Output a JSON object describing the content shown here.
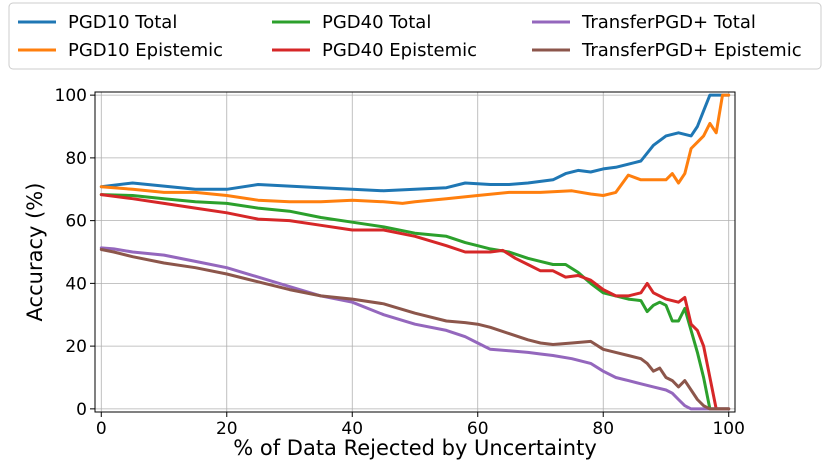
{
  "chart_data": {
    "type": "line",
    "xlabel": "% of Data Rejected by Uncertainty",
    "ylabel": "Accuracy (%)",
    "xlim": [
      -1,
      101
    ],
    "ylim": [
      -1,
      101
    ],
    "x_ticks": [
      0,
      20,
      40,
      60,
      80,
      100
    ],
    "y_ticks": [
      0,
      20,
      40,
      60,
      80,
      100
    ],
    "grid": true,
    "legend_position": "top, above plot, 3 columns",
    "series": [
      {
        "name": "PGD10 Total",
        "color": "#1f77b4",
        "points": [
          [
            0,
            70.8
          ],
          [
            5,
            72
          ],
          [
            10,
            71
          ],
          [
            15,
            70
          ],
          [
            20,
            70
          ],
          [
            25,
            71.5
          ],
          [
            30,
            71
          ],
          [
            35,
            70.5
          ],
          [
            40,
            70
          ],
          [
            45,
            69.5
          ],
          [
            50,
            70
          ],
          [
            55,
            70.5
          ],
          [
            58,
            72
          ],
          [
            62,
            71.5
          ],
          [
            65,
            71.5
          ],
          [
            68,
            72
          ],
          [
            72,
            73
          ],
          [
            74,
            75
          ],
          [
            76,
            76
          ],
          [
            78,
            75.5
          ],
          [
            80,
            76.5
          ],
          [
            82,
            77
          ],
          [
            84,
            78
          ],
          [
            86,
            79
          ],
          [
            88,
            84
          ],
          [
            90,
            87
          ],
          [
            92,
            88
          ],
          [
            94,
            87
          ],
          [
            95,
            90
          ],
          [
            96,
            95
          ],
          [
            97,
            100
          ],
          [
            100,
            100
          ]
        ]
      },
      {
        "name": "PGD10 Epistemic",
        "color": "#ff7f0e",
        "points": [
          [
            0,
            70.8
          ],
          [
            5,
            70
          ],
          [
            10,
            69
          ],
          [
            15,
            69
          ],
          [
            20,
            68
          ],
          [
            25,
            66.5
          ],
          [
            30,
            66
          ],
          [
            35,
            66
          ],
          [
            40,
            66.5
          ],
          [
            45,
            66
          ],
          [
            48,
            65.5
          ],
          [
            50,
            66
          ],
          [
            55,
            67
          ],
          [
            60,
            68
          ],
          [
            65,
            69
          ],
          [
            70,
            69
          ],
          [
            75,
            69.5
          ],
          [
            78,
            68.5
          ],
          [
            80,
            68
          ],
          [
            82,
            69
          ],
          [
            84,
            74.5
          ],
          [
            86,
            73
          ],
          [
            88,
            73
          ],
          [
            90,
            73
          ],
          [
            91,
            75
          ],
          [
            92,
            72
          ],
          [
            93,
            75
          ],
          [
            94,
            83
          ],
          [
            95,
            85
          ],
          [
            96,
            87
          ],
          [
            97,
            91
          ],
          [
            98,
            88
          ],
          [
            99,
            100
          ],
          [
            100,
            100
          ]
        ]
      },
      {
        "name": "PGD40 Total",
        "color": "#2ca02c",
        "points": [
          [
            0,
            68.3
          ],
          [
            5,
            68
          ],
          [
            10,
            67
          ],
          [
            15,
            66
          ],
          [
            20,
            65.5
          ],
          [
            25,
            64
          ],
          [
            30,
            63
          ],
          [
            35,
            61
          ],
          [
            40,
            59.5
          ],
          [
            45,
            58
          ],
          [
            50,
            56
          ],
          [
            55,
            55
          ],
          [
            58,
            53
          ],
          [
            60,
            52
          ],
          [
            62,
            51
          ],
          [
            65,
            50
          ],
          [
            68,
            48
          ],
          [
            70,
            47
          ],
          [
            72,
            46
          ],
          [
            74,
            46
          ],
          [
            76,
            43.5
          ],
          [
            78,
            40
          ],
          [
            80,
            37
          ],
          [
            82,
            36
          ],
          [
            84,
            35
          ],
          [
            86,
            34.5
          ],
          [
            87,
            31
          ],
          [
            88,
            33
          ],
          [
            89,
            34
          ],
          [
            90,
            33
          ],
          [
            91,
            28
          ],
          [
            92,
            28
          ],
          [
            93,
            32
          ],
          [
            94,
            25
          ],
          [
            95,
            18
          ],
          [
            96,
            10
          ],
          [
            97,
            0
          ],
          [
            100,
            0
          ]
        ]
      },
      {
        "name": "PGD40 Epistemic",
        "color": "#d62728",
        "points": [
          [
            0,
            68.3
          ],
          [
            5,
            67
          ],
          [
            10,
            65.5
          ],
          [
            15,
            64
          ],
          [
            20,
            62.5
          ],
          [
            25,
            60.5
          ],
          [
            30,
            60
          ],
          [
            35,
            58.5
          ],
          [
            40,
            57
          ],
          [
            45,
            57
          ],
          [
            50,
            55
          ],
          [
            55,
            52
          ],
          [
            58,
            50
          ],
          [
            60,
            50
          ],
          [
            62,
            50
          ],
          [
            64,
            50.5
          ],
          [
            66,
            48
          ],
          [
            68,
            46
          ],
          [
            70,
            44
          ],
          [
            72,
            44
          ],
          [
            74,
            42
          ],
          [
            76,
            42.5
          ],
          [
            78,
            41
          ],
          [
            80,
            38
          ],
          [
            82,
            36
          ],
          [
            84,
            36
          ],
          [
            86,
            37
          ],
          [
            87,
            40
          ],
          [
            88,
            37
          ],
          [
            90,
            35
          ],
          [
            92,
            34
          ],
          [
            93,
            35.5
          ],
          [
            94,
            27
          ],
          [
            95,
            25
          ],
          [
            96,
            20
          ],
          [
            97,
            10
          ],
          [
            98,
            0
          ],
          [
            100,
            0
          ]
        ]
      },
      {
        "name": "TransferPGD+ Total",
        "color": "#9467bd",
        "points": [
          [
            0,
            51.3
          ],
          [
            2,
            51
          ],
          [
            5,
            50
          ],
          [
            10,
            49
          ],
          [
            15,
            47
          ],
          [
            20,
            45
          ],
          [
            25,
            42
          ],
          [
            30,
            39
          ],
          [
            35,
            36
          ],
          [
            40,
            34
          ],
          [
            45,
            30
          ],
          [
            50,
            27
          ],
          [
            55,
            25
          ],
          [
            58,
            23
          ],
          [
            60,
            21
          ],
          [
            62,
            19
          ],
          [
            65,
            18.5
          ],
          [
            68,
            18
          ],
          [
            70,
            17.5
          ],
          [
            72,
            17
          ],
          [
            75,
            16
          ],
          [
            78,
            14.5
          ],
          [
            80,
            12
          ],
          [
            82,
            10
          ],
          [
            84,
            9
          ],
          [
            86,
            8
          ],
          [
            88,
            7
          ],
          [
            90,
            6
          ],
          [
            91,
            5
          ],
          [
            92,
            3
          ],
          [
            93,
            1
          ],
          [
            94,
            0
          ],
          [
            100,
            0
          ]
        ]
      },
      {
        "name": "TransferPGD+ Epistemic",
        "color": "#8c564b",
        "points": [
          [
            0,
            50.8
          ],
          [
            2,
            50
          ],
          [
            5,
            48.5
          ],
          [
            10,
            46.5
          ],
          [
            15,
            45
          ],
          [
            20,
            43
          ],
          [
            25,
            40.5
          ],
          [
            30,
            38
          ],
          [
            35,
            36
          ],
          [
            40,
            35
          ],
          [
            45,
            33.5
          ],
          [
            50,
            30.5
          ],
          [
            55,
            28
          ],
          [
            58,
            27.5
          ],
          [
            60,
            27
          ],
          [
            62,
            26
          ],
          [
            65,
            24
          ],
          [
            68,
            22
          ],
          [
            70,
            21
          ],
          [
            72,
            20.5
          ],
          [
            75,
            21
          ],
          [
            78,
            21.5
          ],
          [
            80,
            19
          ],
          [
            82,
            18
          ],
          [
            84,
            17
          ],
          [
            86,
            16
          ],
          [
            87,
            14.5
          ],
          [
            88,
            12
          ],
          [
            89,
            13
          ],
          [
            90,
            10
          ],
          [
            91,
            9
          ],
          [
            92,
            7
          ],
          [
            93,
            9
          ],
          [
            94,
            6
          ],
          [
            95,
            3
          ],
          [
            96,
            1
          ],
          [
            97,
            0
          ],
          [
            100,
            0
          ]
        ]
      }
    ]
  }
}
